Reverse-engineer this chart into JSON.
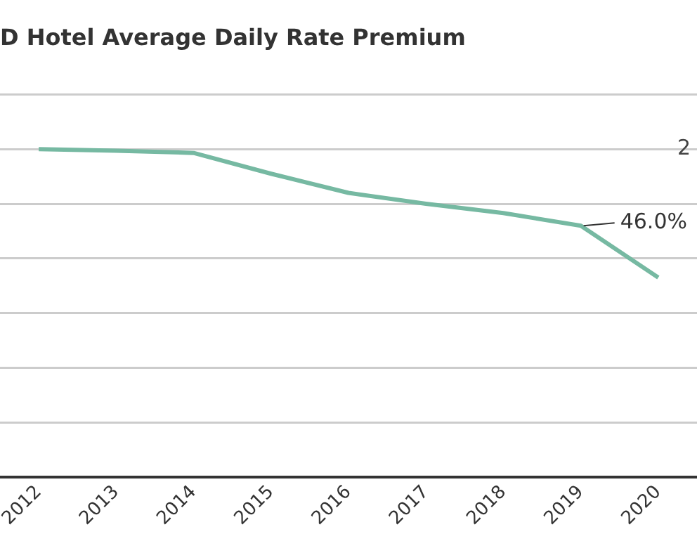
{
  "chart_data": {
    "type": "line",
    "title": "D Hotel Average Daily Rate Premium",
    "categories": [
      "2012",
      "2013",
      "2014",
      "2015",
      "2016",
      "2017",
      "2018",
      "2019",
      "2020"
    ],
    "series": [
      {
        "color": "#76b9a2",
        "values": [
          60,
          59.7,
          59.3,
          55.5,
          52,
          50,
          48.3,
          46.0,
          36.5
        ],
        "value_labels": [
          null,
          null,
          null,
          null,
          null,
          null,
          null,
          "46.0%",
          null
        ]
      }
    ],
    "ylim": [
      0,
      70
    ],
    "yticks": [
      {
        "value": 0,
        "label": null
      },
      {
        "value": 10,
        "label": null
      },
      {
        "value": 20,
        "label": null
      },
      {
        "value": 30,
        "label": null
      },
      {
        "value": 40,
        "label": null
      },
      {
        "value": 50,
        "label": null
      },
      {
        "value": 60,
        "label": null
      },
      {
        "value": 70,
        "label": null
      }
    ],
    "tick_labels": "x",
    "annotations": [
      "2"
    ],
    "grid": "y",
    "legend": false,
    "marker": "none",
    "line_style": "solid"
  }
}
